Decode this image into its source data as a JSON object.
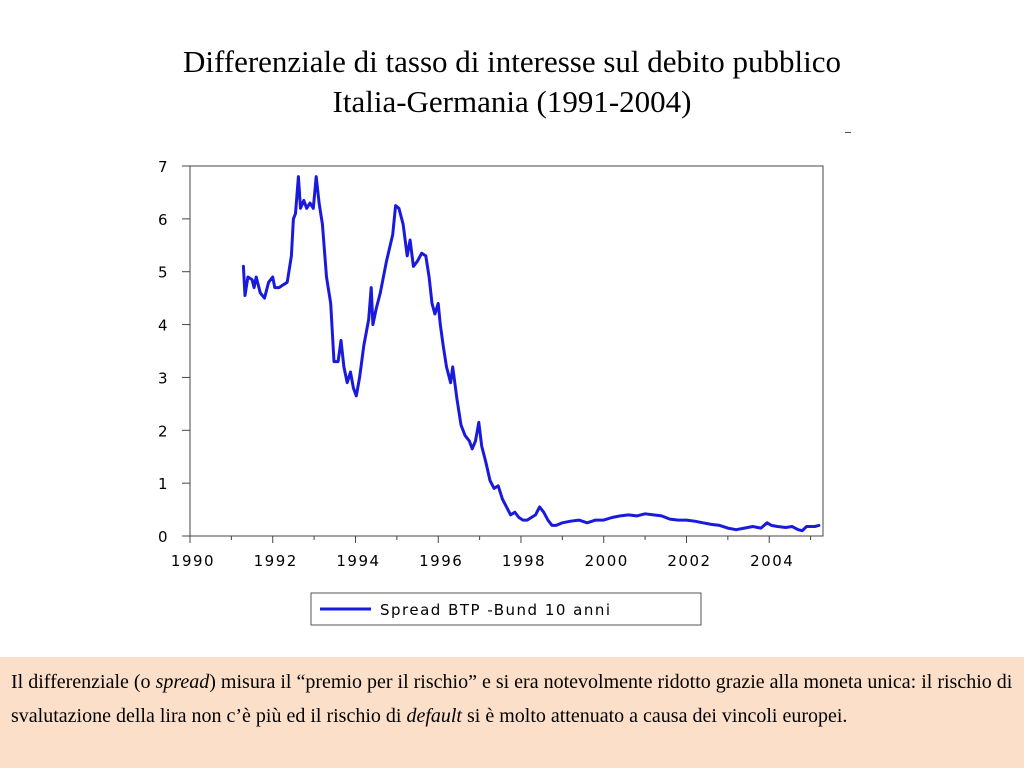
{
  "title": {
    "line1": "Differenziale di tasso di interesse sul debito pubblico",
    "line2": "Italia-Germania (1991-2004)"
  },
  "caption": {
    "part1": "Il differenziale (o ",
    "italic1": "spread",
    "part2": ") misura il “premio per il rischio” e si era notevolmente ridotto grazie alla moneta unica: il rischio di svalutazione della lira non c’è più ed il rischio di ",
    "italic2": "default",
    "part3": " si è molto attenuato a causa dei vincoli europei."
  },
  "colors": {
    "series": "#1a1adc",
    "grid": "#909090",
    "caption_bg": "#fbdfc8"
  },
  "chart_data": {
    "type": "line",
    "xlim": [
      1990,
      2005.3
    ],
    "ylim": [
      0,
      7
    ],
    "x_ticks": [
      1990,
      1992,
      1994,
      1996,
      1998,
      2000,
      2002,
      2004
    ],
    "y_ticks": [
      0,
      1,
      2,
      3,
      4,
      5,
      6,
      7
    ],
    "grid": true,
    "legend": "bottom",
    "series": [
      {
        "name": "Spread BTP -Bund 10 anni",
        "points": [
          [
            1991.29,
            5.1
          ],
          [
            1991.33,
            4.55
          ],
          [
            1991.4,
            4.9
          ],
          [
            1991.5,
            4.85
          ],
          [
            1991.55,
            4.7
          ],
          [
            1991.6,
            4.9
          ],
          [
            1991.7,
            4.6
          ],
          [
            1991.8,
            4.5
          ],
          [
            1991.9,
            4.8
          ],
          [
            1992.0,
            4.9
          ],
          [
            1992.05,
            4.7
          ],
          [
            1992.15,
            4.7
          ],
          [
            1992.25,
            4.75
          ],
          [
            1992.35,
            4.8
          ],
          [
            1992.45,
            5.3
          ],
          [
            1992.5,
            6.0
          ],
          [
            1992.55,
            6.1
          ],
          [
            1992.62,
            6.8
          ],
          [
            1992.67,
            6.2
          ],
          [
            1992.75,
            6.35
          ],
          [
            1992.82,
            6.2
          ],
          [
            1992.9,
            6.3
          ],
          [
            1992.98,
            6.2
          ],
          [
            1993.05,
            6.8
          ],
          [
            1993.12,
            6.3
          ],
          [
            1993.2,
            5.9
          ],
          [
            1993.3,
            4.9
          ],
          [
            1993.4,
            4.4
          ],
          [
            1993.48,
            3.3
          ],
          [
            1993.58,
            3.3
          ],
          [
            1993.65,
            3.7
          ],
          [
            1993.72,
            3.2
          ],
          [
            1993.8,
            2.9
          ],
          [
            1993.88,
            3.1
          ],
          [
            1993.95,
            2.8
          ],
          [
            1994.02,
            2.65
          ],
          [
            1994.1,
            3.0
          ],
          [
            1994.2,
            3.6
          ],
          [
            1994.32,
            4.1
          ],
          [
            1994.38,
            4.7
          ],
          [
            1994.42,
            4.0
          ],
          [
            1994.5,
            4.3
          ],
          [
            1994.6,
            4.6
          ],
          [
            1994.75,
            5.2
          ],
          [
            1994.9,
            5.7
          ],
          [
            1994.97,
            6.25
          ],
          [
            1995.05,
            6.2
          ],
          [
            1995.15,
            5.9
          ],
          [
            1995.25,
            5.3
          ],
          [
            1995.32,
            5.6
          ],
          [
            1995.4,
            5.1
          ],
          [
            1995.5,
            5.2
          ],
          [
            1995.6,
            5.35
          ],
          [
            1995.7,
            5.3
          ],
          [
            1995.78,
            4.9
          ],
          [
            1995.85,
            4.4
          ],
          [
            1995.92,
            4.2
          ],
          [
            1996.0,
            4.4
          ],
          [
            1996.05,
            4.0
          ],
          [
            1996.12,
            3.6
          ],
          [
            1996.2,
            3.2
          ],
          [
            1996.3,
            2.9
          ],
          [
            1996.35,
            3.2
          ],
          [
            1996.45,
            2.6
          ],
          [
            1996.55,
            2.1
          ],
          [
            1996.65,
            1.9
          ],
          [
            1996.75,
            1.8
          ],
          [
            1996.82,
            1.65
          ],
          [
            1996.9,
            1.8
          ],
          [
            1996.98,
            2.15
          ],
          [
            1997.05,
            1.7
          ],
          [
            1997.15,
            1.4
          ],
          [
            1997.25,
            1.05
          ],
          [
            1997.35,
            0.9
          ],
          [
            1997.45,
            0.95
          ],
          [
            1997.55,
            0.7
          ],
          [
            1997.65,
            0.55
          ],
          [
            1997.75,
            0.4
          ],
          [
            1997.85,
            0.45
          ],
          [
            1997.95,
            0.35
          ],
          [
            1998.05,
            0.3
          ],
          [
            1998.15,
            0.3
          ],
          [
            1998.25,
            0.35
          ],
          [
            1998.35,
            0.4
          ],
          [
            1998.45,
            0.55
          ],
          [
            1998.55,
            0.45
          ],
          [
            1998.65,
            0.3
          ],
          [
            1998.75,
            0.2
          ],
          [
            1998.85,
            0.2
          ],
          [
            1999.0,
            0.25
          ],
          [
            1999.2,
            0.28
          ],
          [
            1999.4,
            0.3
          ],
          [
            1999.6,
            0.25
          ],
          [
            1999.8,
            0.3
          ],
          [
            2000.0,
            0.3
          ],
          [
            2000.2,
            0.35
          ],
          [
            2000.4,
            0.38
          ],
          [
            2000.6,
            0.4
          ],
          [
            2000.8,
            0.38
          ],
          [
            2001.0,
            0.42
          ],
          [
            2001.2,
            0.4
          ],
          [
            2001.4,
            0.38
          ],
          [
            2001.6,
            0.32
          ],
          [
            2001.8,
            0.3
          ],
          [
            2002.0,
            0.3
          ],
          [
            2002.2,
            0.28
          ],
          [
            2002.4,
            0.25
          ],
          [
            2002.6,
            0.22
          ],
          [
            2002.8,
            0.2
          ],
          [
            2003.0,
            0.15
          ],
          [
            2003.2,
            0.12
          ],
          [
            2003.4,
            0.15
          ],
          [
            2003.6,
            0.18
          ],
          [
            2003.8,
            0.15
          ],
          [
            2003.95,
            0.25
          ],
          [
            2004.05,
            0.2
          ],
          [
            2004.2,
            0.18
          ],
          [
            2004.4,
            0.16
          ],
          [
            2004.55,
            0.18
          ],
          [
            2004.7,
            0.12
          ],
          [
            2004.8,
            0.1
          ],
          [
            2004.9,
            0.18
          ],
          [
            2005.1,
            0.18
          ],
          [
            2005.2,
            0.2
          ]
        ]
      }
    ]
  }
}
